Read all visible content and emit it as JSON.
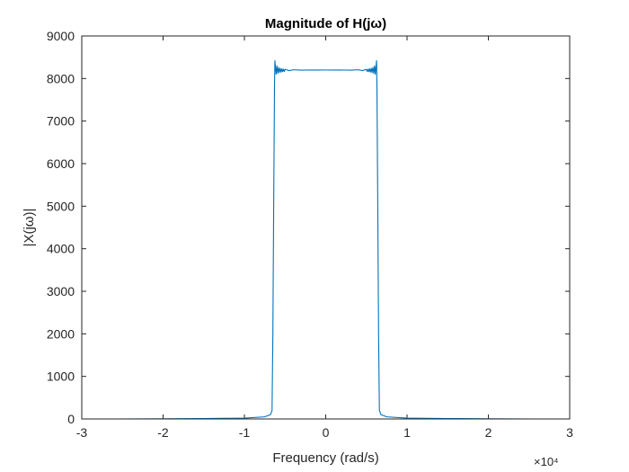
{
  "chart_data": {
    "type": "line",
    "title": "Magnitude of H(jω)",
    "xlabel": "Frequency (rad/s)",
    "ylabel": "|X(jω)|",
    "x_exponent_label": "×10⁴",
    "x_scale_factor": 10000,
    "xlim": [
      -3,
      3
    ],
    "ylim": [
      0,
      9000
    ],
    "x_ticks": [
      -3,
      -2,
      -1,
      0,
      1,
      2,
      3
    ],
    "x_tick_labels": [
      "-3",
      "-2",
      "-1",
      "0",
      "1",
      "2",
      "3"
    ],
    "y_ticks": [
      0,
      1000,
      2000,
      3000,
      4000,
      5000,
      6000,
      7000,
      8000,
      9000
    ],
    "y_tick_labels": [
      "0",
      "1000",
      "2000",
      "3000",
      "4000",
      "5000",
      "6000",
      "7000",
      "8000",
      "9000"
    ],
    "grid": false,
    "series": [
      {
        "color": "#0072BD",
        "x": [
          -2.6,
          -2.0,
          -1.5,
          -1.0,
          -0.75,
          -0.68,
          -0.66,
          -0.65,
          -0.64,
          -0.63,
          -0.625,
          -0.61,
          -0.6,
          -0.59,
          -0.58,
          -0.57,
          -0.56,
          -0.55,
          -0.54,
          -0.53,
          -0.52,
          -0.51,
          -0.5,
          -0.45,
          -0.4,
          -0.3,
          -0.2,
          -0.1,
          0,
          0.1,
          0.2,
          0.3,
          0.4,
          0.45,
          0.5,
          0.51,
          0.52,
          0.53,
          0.54,
          0.55,
          0.56,
          0.57,
          0.58,
          0.59,
          0.6,
          0.61,
          0.625,
          0.63,
          0.64,
          0.65,
          0.66,
          0.68,
          0.75,
          1.0,
          1.5,
          2.0,
          2.6
        ],
        "y": [
          0,
          5,
          10,
          20,
          50,
          100,
          200,
          2000,
          5000,
          7800,
          8420,
          8100,
          8300,
          8120,
          8260,
          8140,
          8240,
          8150,
          8230,
          8160,
          8220,
          8165,
          8215,
          8185,
          8205,
          8195,
          8200,
          8198,
          8200,
          8198,
          8200,
          8195,
          8205,
          8185,
          8215,
          8165,
          8220,
          8160,
          8230,
          8150,
          8240,
          8140,
          8260,
          8120,
          8300,
          8100,
          8420,
          7800,
          5000,
          2000,
          200,
          100,
          50,
          20,
          10,
          5,
          0
        ]
      }
    ]
  }
}
